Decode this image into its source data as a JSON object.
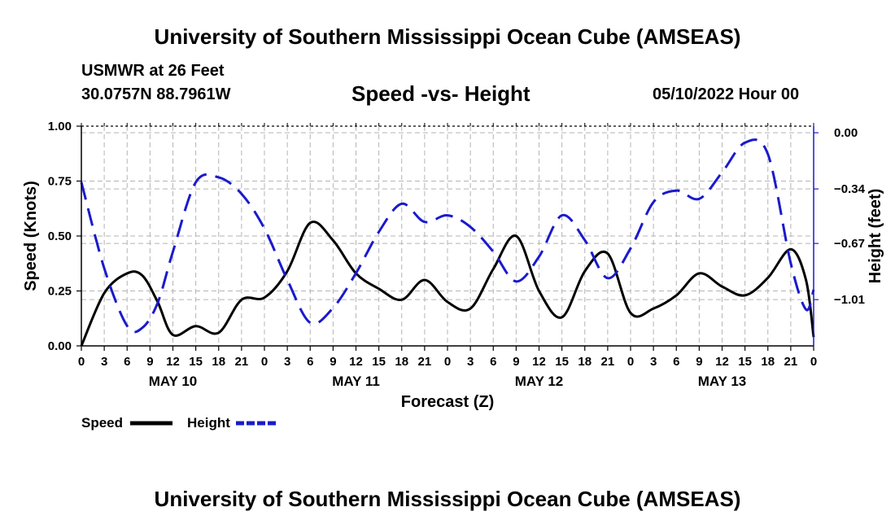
{
  "header": {
    "title": "University of Southern Mississippi Ocean Cube (AMSEAS)",
    "station": "USMWR at 26 Feet",
    "coords": "30.0757N  88.7961W",
    "date": "05/10/2022 Hour 00"
  },
  "footer": {
    "title": "University of Southern Mississippi Ocean Cube (AMSEAS)"
  },
  "colors": {
    "speed": "#000000",
    "height": "#1a1acc",
    "grid": "#b4b4b4"
  },
  "chart_data": {
    "type": "line",
    "title": "Speed -vs- Height",
    "xlabel": "Forecast (Z)",
    "ylabel": "Speed (Knots)",
    "y2label": "Height (feet)",
    "xlim": [
      0,
      96
    ],
    "ylim": [
      0,
      1
    ],
    "y2lim": [
      -1.29,
      0.04
    ],
    "x_tick_step": 3,
    "x_ticks": [
      "0",
      "3",
      "6",
      "9",
      "12",
      "15",
      "18",
      "21",
      "0",
      "3",
      "6",
      "9",
      "12",
      "15",
      "18",
      "21",
      "0",
      "3",
      "6",
      "9",
      "12",
      "15",
      "18",
      "21",
      "0",
      "3",
      "6",
      "9",
      "12",
      "15",
      "18",
      "21",
      "0"
    ],
    "y_ticks": [
      0,
      0.25,
      0.5,
      0.75,
      1.0
    ],
    "y_tick_labels": [
      "0.00",
      "0.25",
      "0.50",
      "0.75",
      "1.00"
    ],
    "y2_ticks": [
      0,
      -0.34,
      -0.67,
      -1.01
    ],
    "y2_tick_labels": [
      "0.00",
      "−0.34",
      "−0.67",
      "−1.01"
    ],
    "days": [
      {
        "label": "MAY 10",
        "x": 12
      },
      {
        "label": "MAY 11",
        "x": 36
      },
      {
        "label": "MAY 12",
        "x": 60
      },
      {
        "label": "MAY 13",
        "x": 84
      }
    ],
    "legend": [
      {
        "name": "Speed",
        "style": "solid"
      },
      {
        "name": "Height",
        "style": "dashed"
      }
    ],
    "series": [
      {
        "name": "Speed",
        "axis": "left",
        "style": "solid",
        "x": [
          0,
          3,
          6,
          8,
          10,
          12,
          15,
          18,
          21,
          24,
          27,
          30,
          33,
          36,
          39,
          42,
          45,
          48,
          51,
          54,
          57,
          60,
          63,
          66,
          69,
          72,
          75,
          78,
          81,
          84,
          87,
          90,
          93,
          95,
          96
        ],
        "y": [
          0,
          0.24,
          0.33,
          0.32,
          0.2,
          0.05,
          0.09,
          0.06,
          0.21,
          0.22,
          0.34,
          0.56,
          0.48,
          0.33,
          0.26,
          0.21,
          0.3,
          0.2,
          0.17,
          0.35,
          0.5,
          0.25,
          0.13,
          0.34,
          0.42,
          0.15,
          0.17,
          0.23,
          0.33,
          0.27,
          0.23,
          0.31,
          0.44,
          0.3,
          0.04
        ]
      },
      {
        "name": "Height",
        "axis": "right",
        "style": "dashed",
        "x": [
          0,
          3,
          6,
          8,
          10,
          12,
          15,
          18,
          21,
          24,
          27,
          30,
          33,
          36,
          39,
          42,
          45,
          48,
          51,
          54,
          57,
          60,
          63,
          66,
          69,
          72,
          75,
          78,
          81,
          84,
          87,
          90,
          93,
          95,
          96
        ],
        "y": [
          -0.3,
          -0.82,
          -1.17,
          -1.18,
          -1.03,
          -0.72,
          -0.3,
          -0.27,
          -0.37,
          -0.58,
          -0.89,
          -1.15,
          -1.06,
          -0.85,
          -0.6,
          -0.43,
          -0.54,
          -0.5,
          -0.57,
          -0.72,
          -0.9,
          -0.75,
          -0.5,
          -0.65,
          -0.88,
          -0.7,
          -0.42,
          -0.35,
          -0.4,
          -0.24,
          -0.06,
          -0.13,
          -0.79,
          -1.07,
          -0.95
        ]
      }
    ]
  }
}
